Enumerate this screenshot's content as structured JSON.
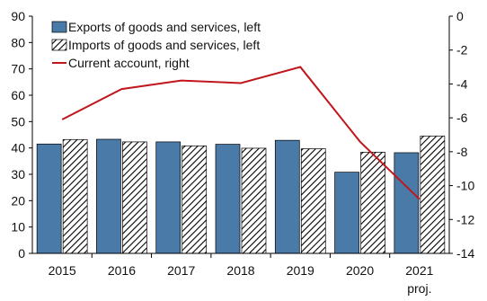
{
  "chart_data": {
    "type": "bar",
    "categories": [
      "2015",
      "2016",
      "2017",
      "2018",
      "2019",
      "2020",
      "2021"
    ],
    "category_sublabels": [
      "",
      "",
      "",
      "",
      "",
      "",
      "proj."
    ],
    "series": [
      {
        "name": "Exports of goods and services, left",
        "kind": "bar",
        "axis": "left",
        "color": "#4a7aa8",
        "values": [
          41.5,
          43.3,
          42.3,
          41.4,
          42.9,
          30.8,
          38.2
        ]
      },
      {
        "name": "Imports of goods and services, left",
        "kind": "bar",
        "axis": "left",
        "pattern": "diagonal-hatch",
        "color": "#000000",
        "values": [
          43.2,
          42.3,
          40.8,
          39.9,
          39.7,
          38.4,
          44.5
        ]
      },
      {
        "name": "Current account, right",
        "kind": "line",
        "axis": "right",
        "color": "#c0161c",
        "values": [
          -6.1,
          -4.3,
          -3.8,
          -3.95,
          -3.0,
          -7.4,
          -10.8
        ]
      }
    ],
    "ylim_left": [
      0,
      90
    ],
    "yticks_left": [
      0,
      10,
      20,
      30,
      40,
      50,
      60,
      70,
      80,
      90
    ],
    "ylim_right": [
      -14,
      0
    ],
    "yticks_right": [
      0,
      -2,
      -4,
      -6,
      -8,
      -10,
      -12,
      -14
    ],
    "grid": false,
    "legend_position": "top-left"
  }
}
